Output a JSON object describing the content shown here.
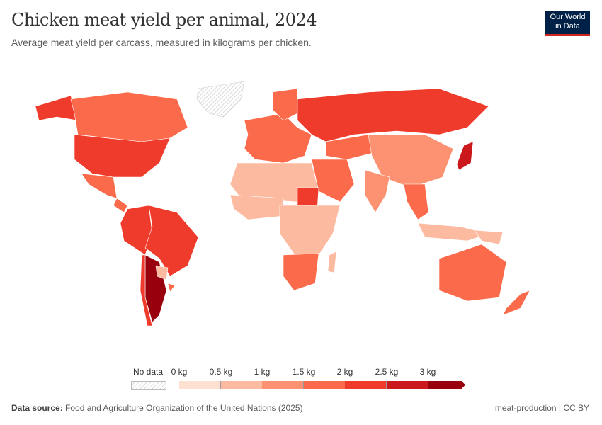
{
  "header": {
    "title": "Chicken meat yield per animal, 2024",
    "subtitle": "Average meat yield per carcass, measured in kilograms per chicken.",
    "logo": "Our World in Data"
  },
  "legend": {
    "no_data_label": "No data",
    "ticks": [
      "0 kg",
      "0.5 kg",
      "1 kg",
      "1.5 kg",
      "2 kg",
      "2.5 kg",
      "3 kg"
    ],
    "colors": [
      "#fde0d2",
      "#fcbba1",
      "#fc9272",
      "#fb6a4a",
      "#ef3b2c",
      "#cb181d",
      "#99000d"
    ],
    "no_data_color": "#e8e8e8"
  },
  "footer": {
    "source_label": "Data source:",
    "source": "Food and Agriculture Organization of the United Nations (2025)",
    "credit": "meat-production | CC BY"
  }
}
